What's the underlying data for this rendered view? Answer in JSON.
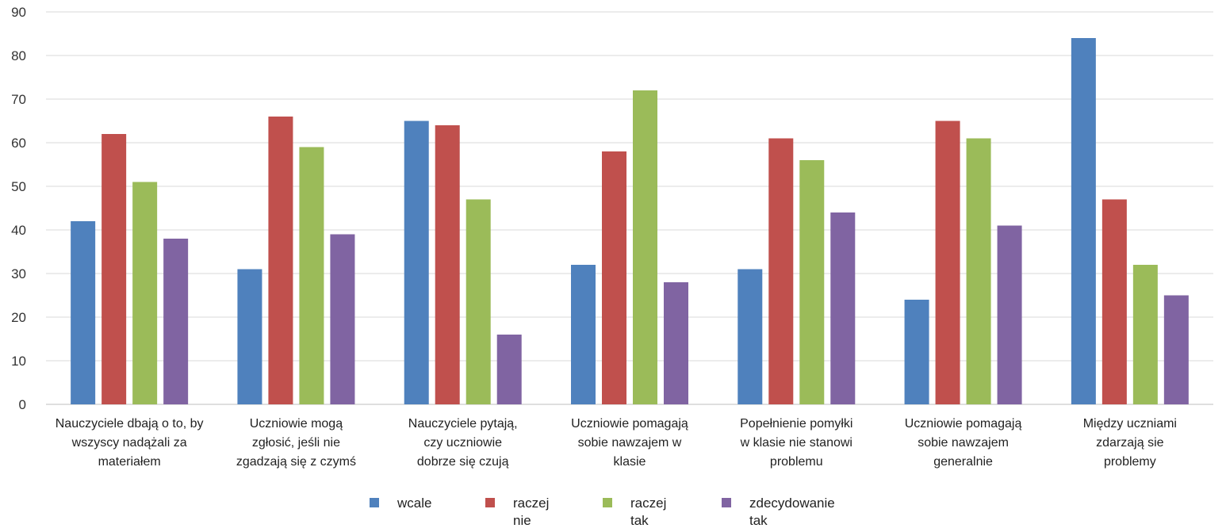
{
  "chart_data": {
    "type": "bar",
    "ylim": [
      0,
      90
    ],
    "yticks": [
      0,
      10,
      20,
      30,
      40,
      50,
      60,
      70,
      80,
      90
    ],
    "grid": true,
    "legend_position": "bottom",
    "categories": [
      [
        "Nauczyciele dbają o to, by",
        "wszyscy nadążali za",
        "materiałem"
      ],
      [
        "Uczniowie mogą",
        "zgłosić, jeśli nie",
        "zgadzają się z czymś"
      ],
      [
        "Nauczyciele pytają,",
        "czy uczniowie",
        "dobrze się czują"
      ],
      [
        "Uczniowie pomagają",
        "sobie nawzajem w",
        "klasie"
      ],
      [
        "Popełnienie pomyłki",
        "w klasie nie stanowi",
        "problemu"
      ],
      [
        "Uczniowie pomagają",
        "sobie nawzajem",
        "generalnie"
      ],
      [
        "Między uczniami",
        "zdarzają sie",
        "problemy"
      ]
    ],
    "series": [
      {
        "name": "wcale",
        "name_lines": [
          "wcale"
        ],
        "color": "#4F81BD",
        "values": [
          42,
          31,
          65,
          32,
          31,
          24,
          84
        ]
      },
      {
        "name": "raczej nie",
        "name_lines": [
          "raczej",
          "nie"
        ],
        "color": "#C0504D",
        "values": [
          62,
          66,
          64,
          58,
          61,
          65,
          47
        ]
      },
      {
        "name": "raczej tak",
        "name_lines": [
          "raczej",
          "tak"
        ],
        "color": "#9BBB59",
        "values": [
          51,
          59,
          47,
          72,
          56,
          61,
          32
        ]
      },
      {
        "name": "zdecydowanie tak",
        "name_lines": [
          "zdecydowanie",
          "tak"
        ],
        "color": "#8064A2",
        "values": [
          38,
          39,
          16,
          28,
          44,
          41,
          25
        ]
      }
    ]
  }
}
